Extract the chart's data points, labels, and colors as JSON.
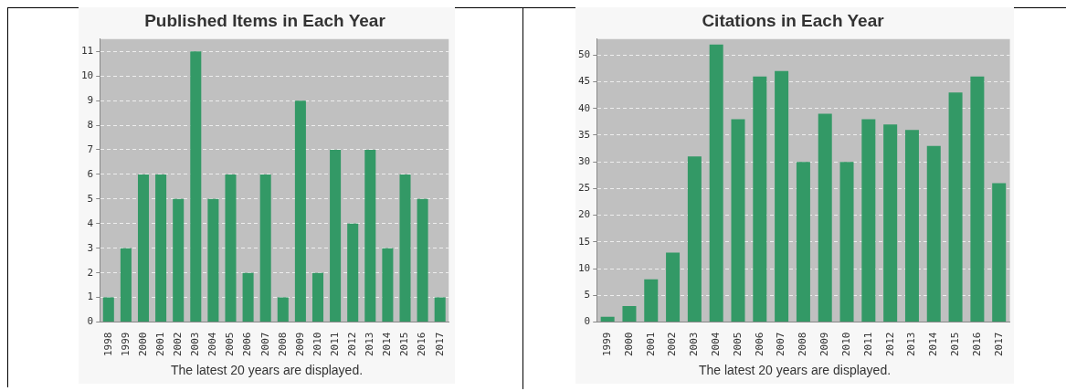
{
  "chart_data": [
    {
      "type": "bar",
      "title": "Published Items in Each Year",
      "categories": [
        "1998",
        "1999",
        "2000",
        "2001",
        "2002",
        "2003",
        "2004",
        "2005",
        "2006",
        "2007",
        "2008",
        "2009",
        "2010",
        "2011",
        "2012",
        "2013",
        "2014",
        "2015",
        "2016",
        "2017"
      ],
      "values": [
        1,
        3,
        6,
        6,
        5,
        11,
        5,
        6,
        2,
        6,
        1,
        9,
        2,
        7,
        4,
        7,
        3,
        6,
        5,
        1
      ],
      "color": "#339966",
      "ylim": [
        0,
        11.5
      ],
      "yticks": [
        0,
        1,
        2,
        3,
        4,
        5,
        6,
        7,
        8,
        9,
        10,
        11
      ],
      "grid": "y",
      "annotations": [
        "The latest 20 years are displayed."
      ]
    },
    {
      "type": "bar",
      "title": "Citations in Each Year",
      "categories": [
        "1999",
        "2000",
        "2001",
        "2002",
        "2003",
        "2004",
        "2005",
        "2006",
        "2007",
        "2008",
        "2009",
        "2010",
        "2011",
        "2012",
        "2013",
        "2014",
        "2015",
        "2016",
        "2017"
      ],
      "values": [
        1,
        3,
        8,
        13,
        31,
        52,
        38,
        46,
        47,
        30,
        39,
        30,
        38,
        37,
        36,
        33,
        43,
        46,
        26
      ],
      "color": "#339966",
      "ylim": [
        0,
        53
      ],
      "yticks": [
        0,
        5,
        10,
        15,
        20,
        25,
        30,
        35,
        40,
        45,
        50
      ],
      "grid": "y",
      "annotations": [
        "The latest 20 years are displayed."
      ]
    }
  ]
}
